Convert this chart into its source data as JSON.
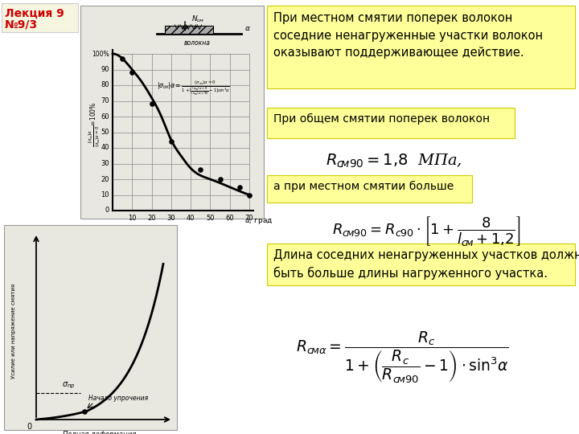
{
  "title_line1": "Лекция 9",
  "title_line2": "№9/3",
  "title_color": "#cc0000",
  "bg_color": "#ffffff",
  "yellow_bg": "#ffff99",
  "text1": "При местном смятии поперек волокон\nсоседние ненагруженные участки волокон\nоказывают поддерживающее действие.",
  "text2": "При общем смятии поперек волокон",
  "text3": "а при местном смятии больше",
  "text4": "Длина соседних ненагруженных участков должна\nбыть больше длины нагруженного участка."
}
